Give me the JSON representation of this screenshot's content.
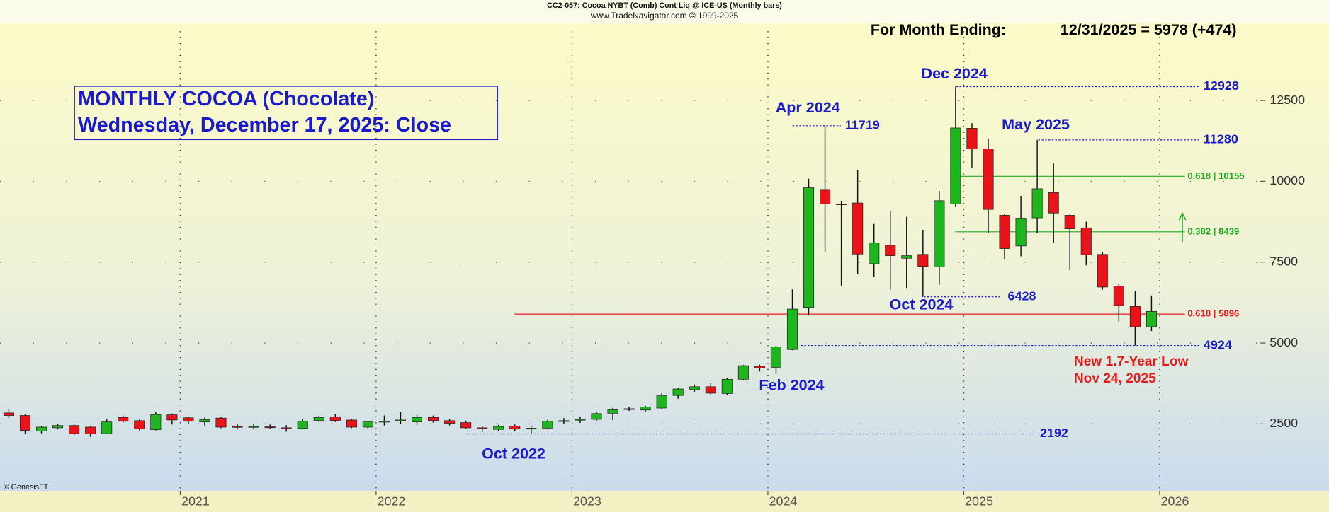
{
  "chart_data": {
    "type": "candlestick",
    "header": "CC2-057:  Cocoa NYBT (Comb) Cont Liq @ ICE-US  (Monthly bars)",
    "source": "www.TradeNavigator.com © 1999-2025",
    "title": [
      "MONTHLY COCOA (Chocolate)",
      "Wednesday, December 17, 2025: Close"
    ],
    "status_label": "For Month Ending:",
    "status_value": "12/31/2025 = 5978 (+474)",
    "credit": "© GenesisFT",
    "x": [
      "2020-02",
      "2020-03",
      "2020-04",
      "2020-05",
      "2020-06",
      "2020-07",
      "2020-08",
      "2020-09",
      "2020-10",
      "2020-11",
      "2020-12",
      "2021-01",
      "2021-02",
      "2021-03",
      "2021-04",
      "2021-05",
      "2021-06",
      "2021-07",
      "2021-08",
      "2021-09",
      "2021-10",
      "2021-11",
      "2021-12",
      "2022-01",
      "2022-02",
      "2022-03",
      "2022-04",
      "2022-05",
      "2022-06",
      "2022-07",
      "2022-08",
      "2022-09",
      "2022-10",
      "2022-11",
      "2022-12",
      "2023-01",
      "2023-02",
      "2023-03",
      "2023-04",
      "2023-05",
      "2023-06",
      "2023-07",
      "2023-08",
      "2023-09",
      "2023-10",
      "2023-11",
      "2023-12",
      "2024-01",
      "2024-02",
      "2024-03",
      "2024-04",
      "2024-05",
      "2024-06",
      "2024-07",
      "2024-08",
      "2024-09",
      "2024-10",
      "2024-11",
      "2024-12",
      "2025-01",
      "2025-02",
      "2025-03",
      "2025-04",
      "2025-05",
      "2025-06",
      "2025-07",
      "2025-08",
      "2025-09",
      "2025-10",
      "2025-11",
      "2025-12"
    ],
    "open": [
      2840,
      2760,
      2280,
      2380,
      2450,
      2400,
      2200,
      2700,
      2600,
      2320,
      2780,
      2690,
      2560,
      2680,
      2420,
      2400,
      2410,
      2380,
      2360,
      2600,
      2720,
      2620,
      2400,
      2560,
      2600,
      2560,
      2700,
      2600,
      2540,
      2380,
      2330,
      2430,
      2340,
      2370,
      2580,
      2620,
      2640,
      2830,
      2950,
      2930,
      2990,
      3380,
      3560,
      3650,
      3440,
      3880,
      4280,
      4250,
      4800,
      6100,
      9750,
      9300,
      9330,
      7450,
      8020,
      7620,
      7740,
      7350,
      9300,
      11640,
      11000,
      8950,
      8000,
      8870,
      9650,
      8950,
      8560,
      7740,
      6760,
      6130,
      5504
    ],
    "high": [
      2950,
      2790,
      2440,
      2490,
      2500,
      2440,
      2640,
      2760,
      2630,
      2860,
      2820,
      2720,
      2700,
      2720,
      2500,
      2500,
      2480,
      2460,
      2660,
      2760,
      2800,
      2660,
      2600,
      2760,
      2880,
      2780,
      2760,
      2650,
      2600,
      2420,
      2470,
      2480,
      2420,
      2620,
      2680,
      2720,
      2860,
      3000,
      3020,
      3060,
      3450,
      3620,
      3720,
      3770,
      3920,
      4320,
      4330,
      4920,
      6660,
      10080,
      11719,
      9400,
      10350,
      8680,
      9070,
      8900,
      8500,
      9700,
      12928,
      11800,
      11300,
      9000,
      9550,
      11280,
      10550,
      8980,
      8750,
      7800,
      6850,
      6620,
      6470
    ],
    "low": [
      2680,
      2180,
      2210,
      2330,
      2150,
      2100,
      2190,
      2540,
      2300,
      2300,
      2480,
      2500,
      2450,
      2370,
      2330,
      2330,
      2350,
      2260,
      2330,
      2560,
      2560,
      2370,
      2360,
      2450,
      2500,
      2480,
      2540,
      2450,
      2340,
      2250,
      2290,
      2270,
      2192,
      2340,
      2500,
      2530,
      2600,
      2620,
      2900,
      2880,
      2970,
      3280,
      3480,
      3390,
      3400,
      3850,
      4120,
      4050,
      4780,
      5850,
      7800,
      6750,
      7130,
      7050,
      6650,
      6700,
      6428,
      6800,
      9200,
      10400,
      8390,
      7600,
      7680,
      8400,
      8100,
      7250,
      7400,
      6650,
      5640,
      4924,
      5370
    ],
    "close": [
      2760,
      2300,
      2400,
      2450,
      2200,
      2190,
      2560,
      2580,
      2350,
      2790,
      2620,
      2580,
      2630,
      2400,
      2400,
      2420,
      2390,
      2360,
      2580,
      2700,
      2600,
      2400,
      2560,
      2580,
      2620,
      2700,
      2600,
      2520,
      2380,
      2360,
      2420,
      2340,
      2370,
      2580,
      2600,
      2640,
      2820,
      2940,
      2970,
      3020,
      3370,
      3580,
      3650,
      3450,
      3880,
      4300,
      4230,
      4880,
      6050,
      9800,
      9300,
      9280,
      7750,
      8100,
      7700,
      7700,
      7370,
      9400,
      11650,
      11000,
      9130,
      7920,
      8860,
      9770,
      9020,
      8530,
      7730,
      6730,
      6160,
      5504,
      5978
    ],
    "up_color": "#1fb51f",
    "down_color": "#e8141a",
    "xlim": [
      2020.08,
      2026.54
    ],
    "xticks": [
      2021,
      2022,
      2023,
      2024,
      2025,
      2026
    ],
    "ylim": [
      430,
      14900
    ],
    "yticks": [
      2500,
      5000,
      7500,
      10000,
      12500
    ],
    "grid": true,
    "levels": [
      12928,
      11719,
      11280,
      6428,
      4924,
      2192
    ],
    "level_color": "#1a1acc",
    "fib_levels": [
      {
        "label": "0.618 | 10155",
        "value": 10155,
        "color": "#22aa22"
      },
      {
        "label": "0.382 | 8439",
        "value": 8439,
        "color": "#22aa22"
      },
      {
        "label": "0.618 | 5896",
        "value": 5896,
        "color": "#e02020"
      }
    ],
    "annotations": [
      {
        "text": "Dec 2024",
        "color": "#1a1acc"
      },
      {
        "text": "Apr 2024",
        "color": "#1a1acc"
      },
      {
        "text": "May 2025",
        "color": "#1a1acc"
      },
      {
        "text": "Oct 2024",
        "color": "#1a1acc"
      },
      {
        "text": "Feb 2024",
        "color": "#1a1acc"
      },
      {
        "text": "Oct 2022",
        "color": "#1a1acc"
      },
      {
        "text": "New 1.7-Year Low",
        "color": "#e02020"
      },
      {
        "text": "Nov 24, 2025",
        "color": "#e02020"
      }
    ]
  }
}
